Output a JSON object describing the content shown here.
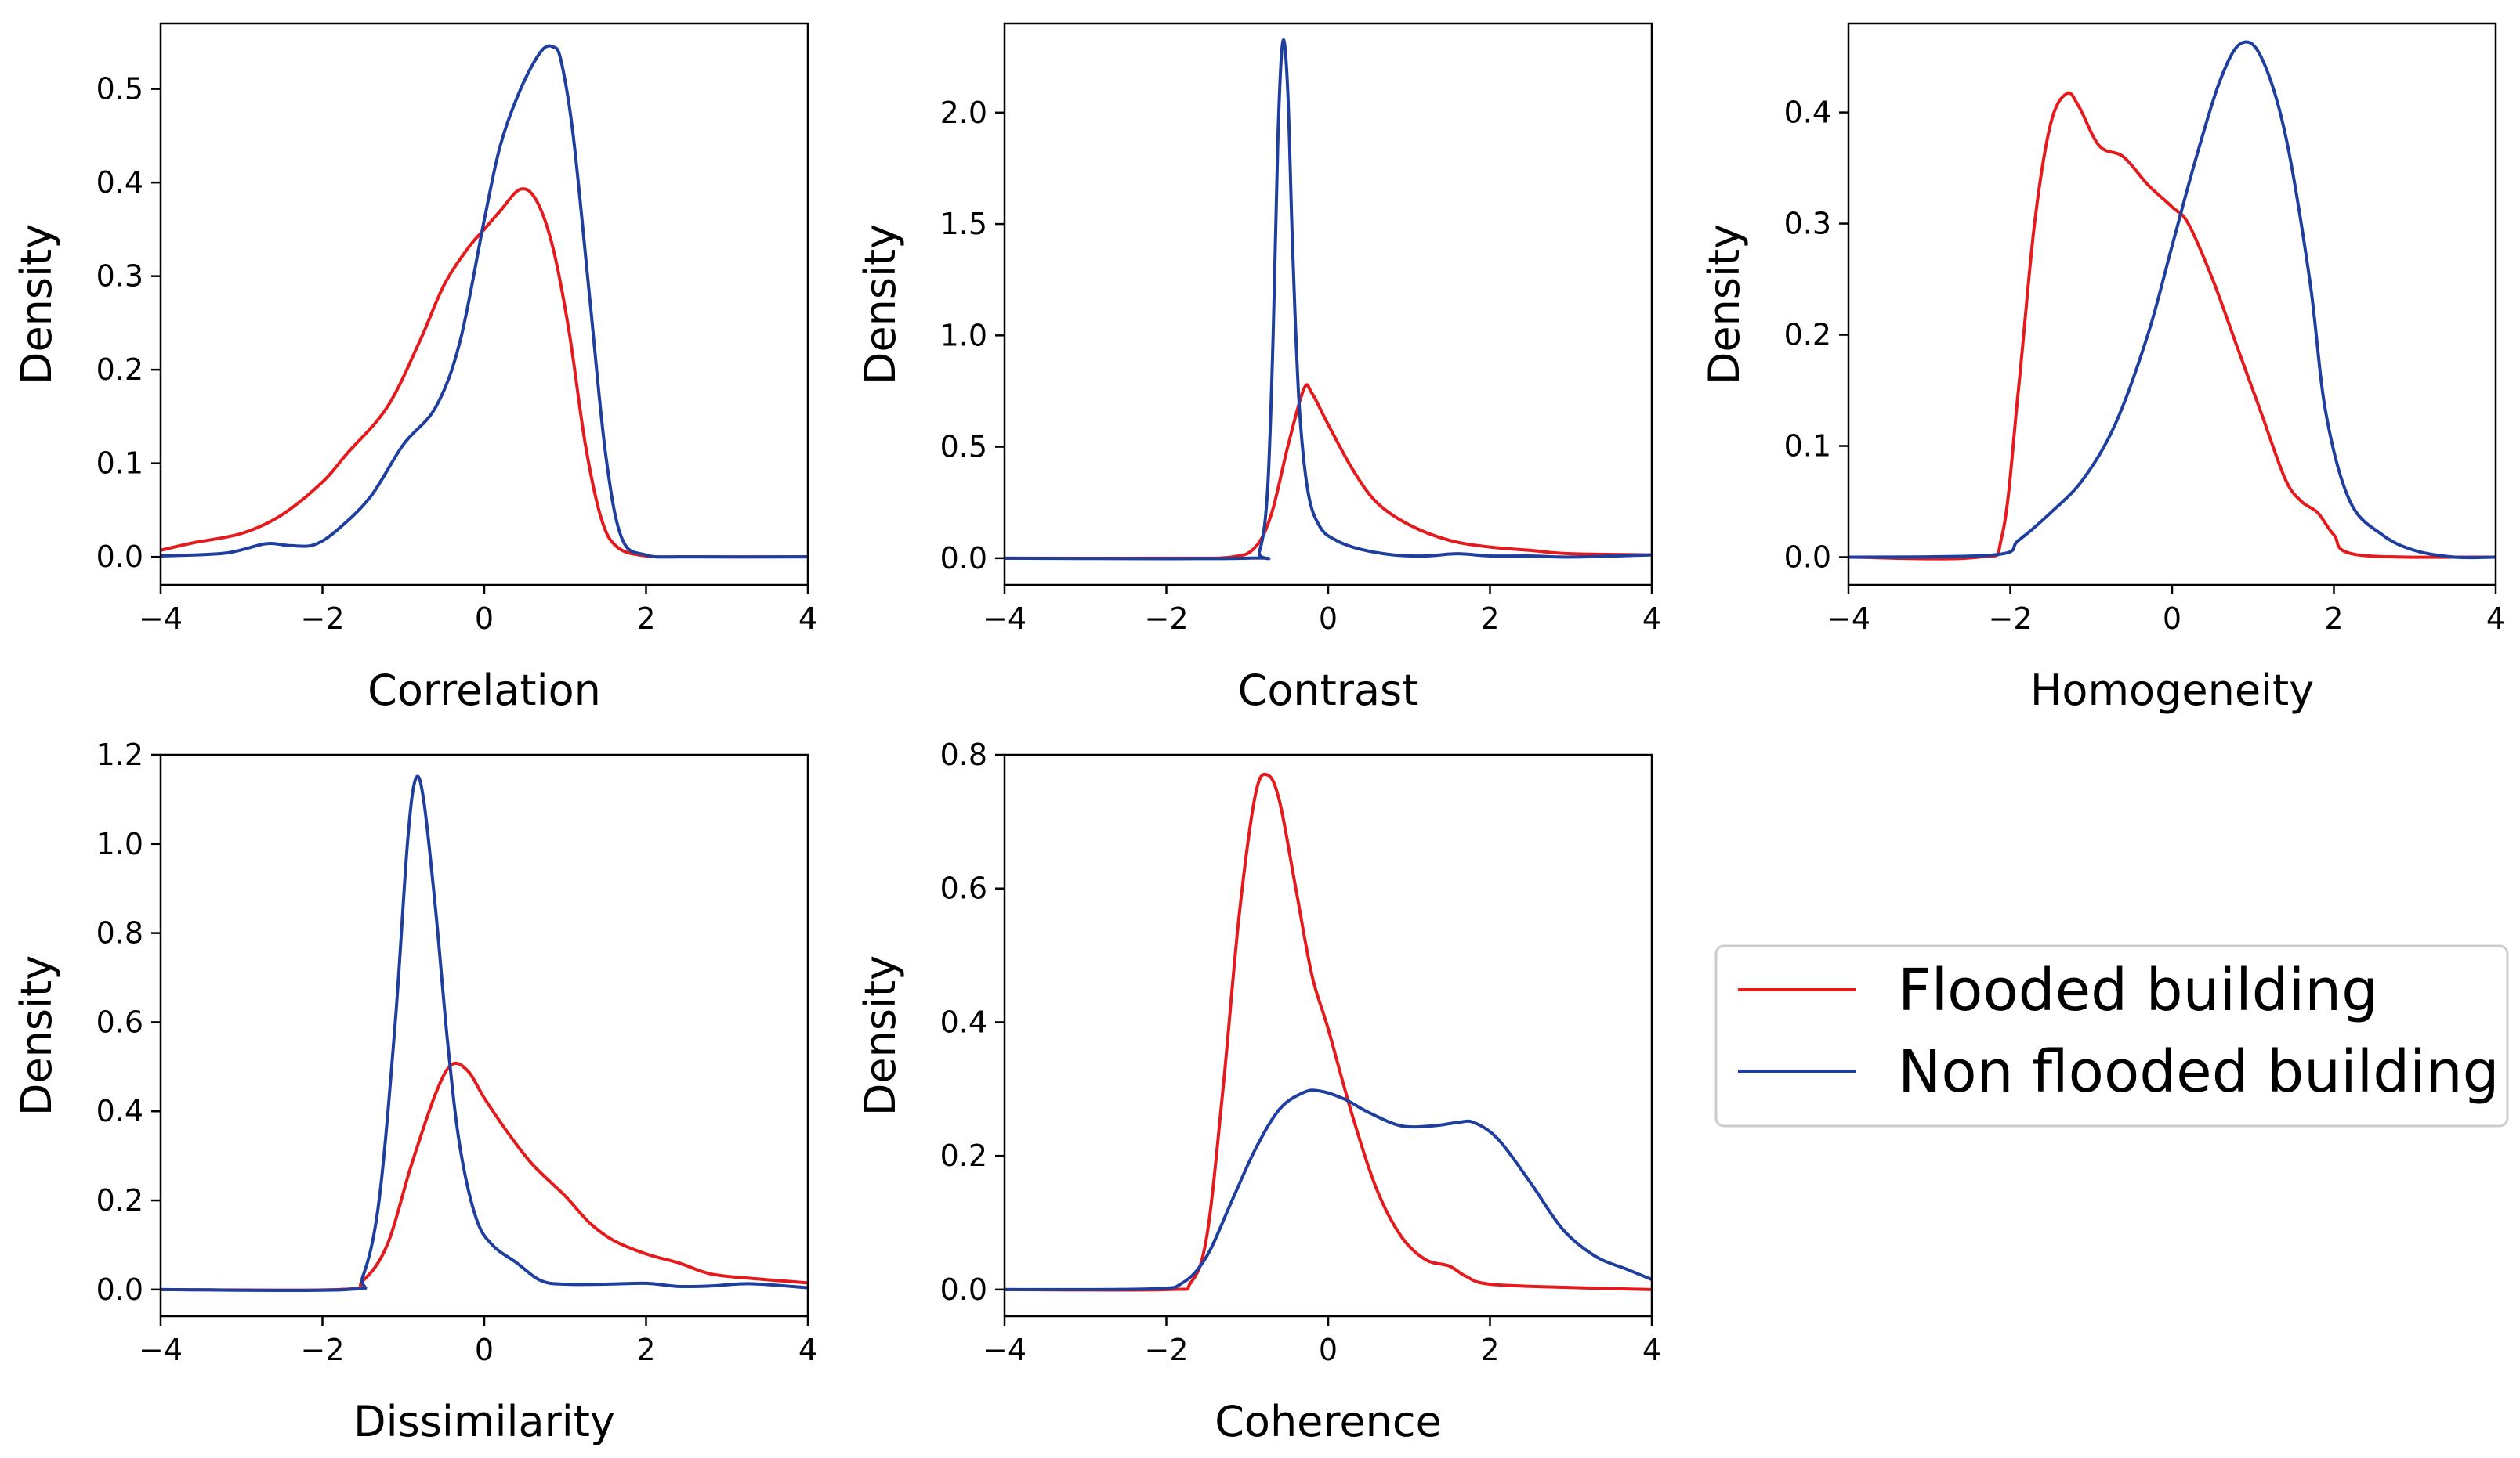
{
  "colors": {
    "flooded": "#e41a1c",
    "non_flooded": "#1f3f9f",
    "axes": "#000000",
    "legend_border": "#cccccc"
  },
  "legend": {
    "flooded_label": "Flooded building",
    "non_flooded_label": "Non flooded building"
  },
  "chart_data": [
    {
      "type": "line",
      "xlabel": "Correlation",
      "ylabel": "Density",
      "xlim": [
        -4,
        4
      ],
      "ylim": [
        -0.03,
        0.57
      ],
      "xticks": [
        -4,
        -2,
        0,
        2,
        4
      ],
      "yticks": [
        0.0,
        0.1,
        0.2,
        0.3,
        0.4,
        0.5
      ],
      "xtick_labels": [
        "−4",
        "−2",
        "0",
        "2",
        "4"
      ],
      "ytick_labels": [
        "0.0",
        "0.1",
        "0.2",
        "0.3",
        "0.4",
        "0.5"
      ],
      "series": [
        {
          "name": "Flooded building",
          "points": [
            [
              -4.0,
              0.007
            ],
            [
              -3.6,
              0.015
            ],
            [
              -3.0,
              0.025
            ],
            [
              -2.5,
              0.045
            ],
            [
              -2.0,
              0.08
            ],
            [
              -1.7,
              0.11
            ],
            [
              -1.2,
              0.16
            ],
            [
              -0.8,
              0.23
            ],
            [
              -0.5,
              0.29
            ],
            [
              -0.2,
              0.33
            ],
            [
              0.0,
              0.35
            ],
            [
              0.2,
              0.37
            ],
            [
              0.45,
              0.393
            ],
            [
              0.65,
              0.38
            ],
            [
              0.85,
              0.33
            ],
            [
              1.05,
              0.24
            ],
            [
              1.25,
              0.12
            ],
            [
              1.45,
              0.04
            ],
            [
              1.65,
              0.01
            ],
            [
              2.0,
              0.001
            ],
            [
              2.5,
              0.0
            ],
            [
              4.0,
              0.0
            ]
          ]
        },
        {
          "name": "Non flooded building",
          "points": [
            [
              -4.0,
              0.001
            ],
            [
              -3.2,
              0.004
            ],
            [
              -2.7,
              0.014
            ],
            [
              -2.4,
              0.012
            ],
            [
              -2.1,
              0.013
            ],
            [
              -1.8,
              0.03
            ],
            [
              -1.4,
              0.065
            ],
            [
              -1.0,
              0.12
            ],
            [
              -0.6,
              0.16
            ],
            [
              -0.3,
              0.23
            ],
            [
              0.0,
              0.36
            ],
            [
              0.2,
              0.44
            ],
            [
              0.45,
              0.5
            ],
            [
              0.7,
              0.54
            ],
            [
              0.85,
              0.545
            ],
            [
              0.95,
              0.53
            ],
            [
              1.1,
              0.45
            ],
            [
              1.3,
              0.28
            ],
            [
              1.5,
              0.11
            ],
            [
              1.7,
              0.02
            ],
            [
              2.0,
              0.002
            ],
            [
              2.5,
              0.0
            ],
            [
              4.0,
              0.0
            ]
          ]
        }
      ]
    },
    {
      "type": "line",
      "xlabel": "Contrast",
      "ylabel": "Density",
      "xlim": [
        -4,
        4
      ],
      "ylim": [
        -0.12,
        2.4
      ],
      "xticks": [
        -4,
        -2,
        0,
        2,
        4
      ],
      "yticks": [
        0.0,
        0.5,
        1.0,
        1.5,
        2.0
      ],
      "xtick_labels": [
        "−4",
        "−2",
        "0",
        "2",
        "4"
      ],
      "ytick_labels": [
        "0.0",
        "0.5",
        "1.0",
        "1.5",
        "2.0"
      ],
      "series": [
        {
          "name": "Flooded building",
          "points": [
            [
              -4.0,
              0.0
            ],
            [
              -2.0,
              0.0
            ],
            [
              -1.2,
              0.005
            ],
            [
              -0.9,
              0.05
            ],
            [
              -0.7,
              0.2
            ],
            [
              -0.5,
              0.5
            ],
            [
              -0.3,
              0.76
            ],
            [
              -0.2,
              0.74
            ],
            [
              0.0,
              0.6
            ],
            [
              0.3,
              0.4
            ],
            [
              0.6,
              0.25
            ],
            [
              1.0,
              0.15
            ],
            [
              1.5,
              0.08
            ],
            [
              2.0,
              0.05
            ],
            [
              2.5,
              0.035
            ],
            [
              3.0,
              0.02
            ],
            [
              4.0,
              0.015
            ]
          ]
        },
        {
          "name": "Non flooded building",
          "points": [
            [
              -4.0,
              0.0
            ],
            [
              -1.0,
              0.0
            ],
            [
              -0.85,
              0.03
            ],
            [
              -0.75,
              0.3
            ],
            [
              -0.68,
              1.0
            ],
            [
              -0.62,
              1.9
            ],
            [
              -0.56,
              2.32
            ],
            [
              -0.5,
              2.1
            ],
            [
              -0.44,
              1.4
            ],
            [
              -0.36,
              0.7
            ],
            [
              -0.25,
              0.3
            ],
            [
              -0.1,
              0.14
            ],
            [
              0.1,
              0.08
            ],
            [
              0.4,
              0.04
            ],
            [
              0.8,
              0.015
            ],
            [
              1.2,
              0.01
            ],
            [
              1.6,
              0.02
            ],
            [
              2.0,
              0.01
            ],
            [
              2.5,
              0.01
            ],
            [
              3.0,
              0.005
            ],
            [
              4.0,
              0.015
            ]
          ]
        }
      ]
    },
    {
      "type": "line",
      "xlabel": "Homogeneity",
      "ylabel": "Density",
      "xlim": [
        -4,
        4
      ],
      "ylim": [
        -0.025,
        0.48
      ],
      "xticks": [
        -4,
        -2,
        0,
        2,
        4
      ],
      "yticks": [
        0.0,
        0.1,
        0.2,
        0.3,
        0.4
      ],
      "xtick_labels": [
        "−4",
        "−2",
        "0",
        "2",
        "4"
      ],
      "ytick_labels": [
        "0.0",
        "0.1",
        "0.2",
        "0.3",
        "0.4"
      ],
      "series": [
        {
          "name": "Flooded building",
          "points": [
            [
              -4.0,
              0.0
            ],
            [
              -2.4,
              0.0
            ],
            [
              -2.1,
              0.02
            ],
            [
              -1.9,
              0.15
            ],
            [
              -1.7,
              0.3
            ],
            [
              -1.5,
              0.39
            ],
            [
              -1.3,
              0.417
            ],
            [
              -1.15,
              0.405
            ],
            [
              -0.9,
              0.37
            ],
            [
              -0.6,
              0.36
            ],
            [
              -0.3,
              0.335
            ],
            [
              0.0,
              0.315
            ],
            [
              0.2,
              0.3
            ],
            [
              0.5,
              0.25
            ],
            [
              0.8,
              0.19
            ],
            [
              1.1,
              0.13
            ],
            [
              1.4,
              0.07
            ],
            [
              1.6,
              0.05
            ],
            [
              1.8,
              0.04
            ],
            [
              2.0,
              0.02
            ],
            [
              2.3,
              0.002
            ],
            [
              4.0,
              0.0
            ]
          ]
        },
        {
          "name": "Non flooded building",
          "points": [
            [
              -4.0,
              0.0
            ],
            [
              -2.2,
              0.002
            ],
            [
              -1.9,
              0.015
            ],
            [
              -1.5,
              0.04
            ],
            [
              -1.1,
              0.07
            ],
            [
              -0.7,
              0.12
            ],
            [
              -0.3,
              0.2
            ],
            [
              0.0,
              0.28
            ],
            [
              0.3,
              0.36
            ],
            [
              0.6,
              0.43
            ],
            [
              0.85,
              0.462
            ],
            [
              1.1,
              0.45
            ],
            [
              1.4,
              0.38
            ],
            [
              1.7,
              0.25
            ],
            [
              1.9,
              0.13
            ],
            [
              2.2,
              0.05
            ],
            [
              2.6,
              0.02
            ],
            [
              3.0,
              0.006
            ],
            [
              3.5,
              0.0
            ],
            [
              4.0,
              0.0
            ]
          ]
        }
      ]
    },
    {
      "type": "line",
      "xlabel": "Dissimilarity",
      "ylabel": "Density",
      "xlim": [
        -4,
        4
      ],
      "ylim": [
        -0.06,
        1.2
      ],
      "xticks": [
        -4,
        -2,
        0,
        2,
        4
      ],
      "yticks": [
        0.0,
        0.2,
        0.4,
        0.6,
        0.8,
        1.0,
        1.2
      ],
      "xtick_labels": [
        "−4",
        "−2",
        "0",
        "2",
        "4"
      ],
      "ytick_labels": [
        "0.0",
        "0.2",
        "0.4",
        "0.6",
        "0.8",
        "1.0",
        "1.2"
      ],
      "series": [
        {
          "name": "Flooded building",
          "points": [
            [
              -4.0,
              0.0
            ],
            [
              -1.8,
              0.0
            ],
            [
              -1.5,
              0.02
            ],
            [
              -1.2,
              0.1
            ],
            [
              -0.9,
              0.28
            ],
            [
              -0.6,
              0.44
            ],
            [
              -0.4,
              0.505
            ],
            [
              -0.2,
              0.49
            ],
            [
              0.0,
              0.43
            ],
            [
              0.3,
              0.35
            ],
            [
              0.6,
              0.28
            ],
            [
              1.0,
              0.21
            ],
            [
              1.3,
              0.15
            ],
            [
              1.6,
              0.11
            ],
            [
              2.0,
              0.08
            ],
            [
              2.4,
              0.06
            ],
            [
              2.8,
              0.035
            ],
            [
              3.3,
              0.025
            ],
            [
              4.0,
              0.015
            ]
          ]
        },
        {
          "name": "Non flooded building",
          "points": [
            [
              -4.0,
              0.0
            ],
            [
              -1.7,
              0.0
            ],
            [
              -1.5,
              0.03
            ],
            [
              -1.3,
              0.2
            ],
            [
              -1.1,
              0.6
            ],
            [
              -0.95,
              1.0
            ],
            [
              -0.85,
              1.145
            ],
            [
              -0.75,
              1.1
            ],
            [
              -0.6,
              0.85
            ],
            [
              -0.45,
              0.55
            ],
            [
              -0.3,
              0.32
            ],
            [
              -0.1,
              0.16
            ],
            [
              0.1,
              0.1
            ],
            [
              0.4,
              0.06
            ],
            [
              0.7,
              0.02
            ],
            [
              1.0,
              0.012
            ],
            [
              1.5,
              0.012
            ],
            [
              2.0,
              0.014
            ],
            [
              2.4,
              0.007
            ],
            [
              2.8,
              0.008
            ],
            [
              3.3,
              0.013
            ],
            [
              4.0,
              0.004
            ]
          ]
        }
      ]
    },
    {
      "type": "line",
      "xlabel": "Coherence",
      "ylabel": "Density",
      "xlim": [
        -4,
        4
      ],
      "ylim": [
        -0.04,
        0.8
      ],
      "xticks": [
        -4,
        -2,
        0,
        2,
        4
      ],
      "yticks": [
        0.0,
        0.2,
        0.4,
        0.6,
        0.8
      ],
      "xtick_labels": [
        "−4",
        "−2",
        "0",
        "2",
        "4"
      ],
      "ytick_labels": [
        "0.0",
        "0.2",
        "0.4",
        "0.6",
        "0.8"
      ],
      "series": [
        {
          "name": "Flooded building",
          "points": [
            [
              -4.0,
              0.0
            ],
            [
              -2.0,
              0.0
            ],
            [
              -1.7,
              0.01
            ],
            [
              -1.5,
              0.08
            ],
            [
              -1.3,
              0.3
            ],
            [
              -1.1,
              0.56
            ],
            [
              -0.9,
              0.74
            ],
            [
              -0.75,
              0.77
            ],
            [
              -0.6,
              0.73
            ],
            [
              -0.4,
              0.6
            ],
            [
              -0.2,
              0.47
            ],
            [
              0.0,
              0.39
            ],
            [
              0.3,
              0.26
            ],
            [
              0.6,
              0.15
            ],
            [
              0.9,
              0.08
            ],
            [
              1.2,
              0.045
            ],
            [
              1.5,
              0.035
            ],
            [
              1.7,
              0.02
            ],
            [
              2.0,
              0.008
            ],
            [
              3.0,
              0.003
            ],
            [
              4.0,
              0.0
            ]
          ]
        },
        {
          "name": "Non flooded building",
          "points": [
            [
              -4.0,
              0.0
            ],
            [
              -2.2,
              0.001
            ],
            [
              -1.8,
              0.01
            ],
            [
              -1.5,
              0.05
            ],
            [
              -1.2,
              0.13
            ],
            [
              -0.9,
              0.21
            ],
            [
              -0.6,
              0.27
            ],
            [
              -0.3,
              0.295
            ],
            [
              -0.1,
              0.297
            ],
            [
              0.2,
              0.285
            ],
            [
              0.5,
              0.265
            ],
            [
              0.9,
              0.245
            ],
            [
              1.3,
              0.245
            ],
            [
              1.6,
              0.25
            ],
            [
              1.8,
              0.25
            ],
            [
              2.1,
              0.225
            ],
            [
              2.5,
              0.16
            ],
            [
              2.9,
              0.09
            ],
            [
              3.3,
              0.05
            ],
            [
              3.7,
              0.03
            ],
            [
              4.0,
              0.015
            ]
          ]
        }
      ]
    }
  ]
}
